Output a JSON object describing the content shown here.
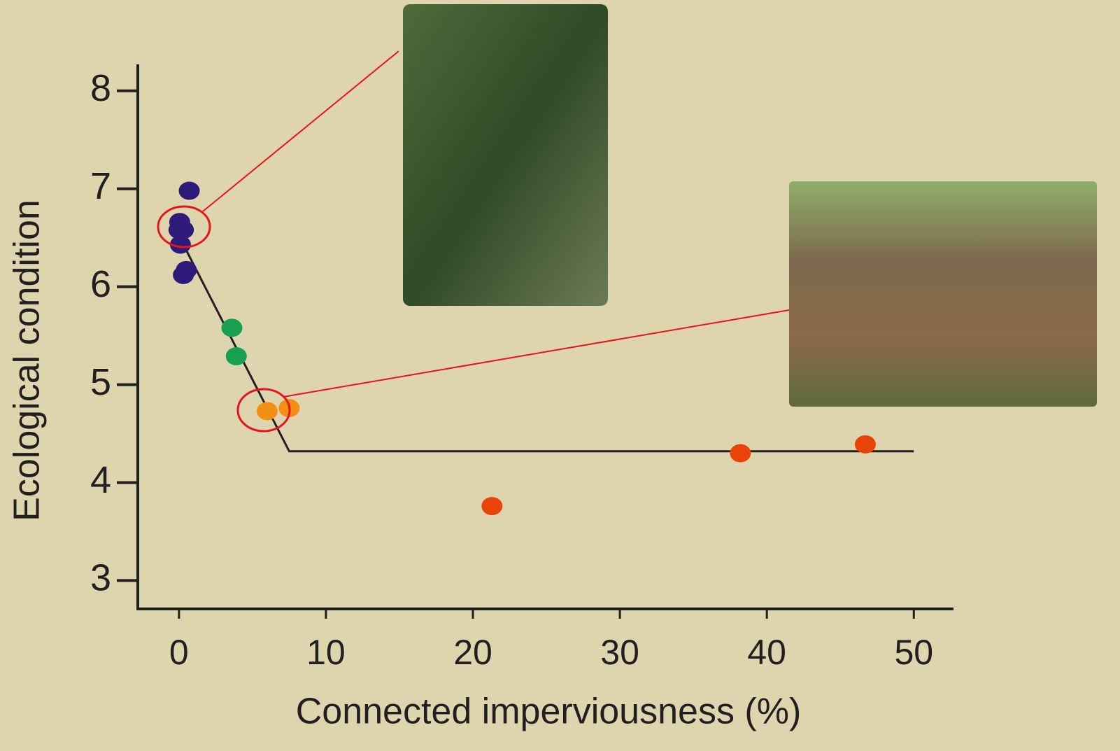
{
  "chart_data": {
    "type": "scatter",
    "x_label": "Connected imperviousness (%)",
    "y_label": "Ecological condition",
    "xlim": [
      -2.8,
      52.7
    ],
    "ylim": [
      2.71,
      8.27
    ],
    "xticks": [
      0,
      10,
      20,
      30,
      40,
      50
    ],
    "yticks": [
      3,
      4,
      5,
      6,
      7,
      8
    ],
    "series": [
      {
        "color": "#2e1a78",
        "x": [
          0.7,
          0.05,
          0.3,
          0.0,
          0.1,
          0.5,
          0.3
        ],
        "values": [
          6.98,
          6.66,
          6.58,
          6.58,
          6.43,
          6.17,
          6.12
        ]
      },
      {
        "color": "#16a050",
        "x": [
          3.6,
          3.9
        ],
        "values": [
          5.58,
          5.29
        ]
      },
      {
        "color": "#f39014",
        "x": [
          6.0,
          7.5
        ],
        "values": [
          4.73,
          4.76
        ]
      },
      {
        "color": "#e8440a",
        "x": [
          21.3,
          38.2,
          46.7
        ],
        "values": [
          3.76,
          4.3,
          4.39
        ]
      }
    ],
    "fit_line": {
      "color": "#231f20",
      "x": [
        0.3,
        7.5,
        50
      ],
      "values": [
        6.43,
        4.32,
        4.32
      ]
    }
  }
}
